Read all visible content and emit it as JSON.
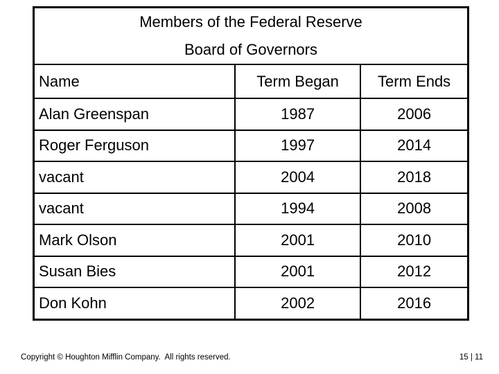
{
  "slide": {
    "table": {
      "title_lines": [
        "Members of the Federal Reserve",
        "Board of Governors"
      ],
      "columns": [
        "Name",
        "Term Began",
        "Term Ends"
      ],
      "rows": [
        {
          "name": "Alan Greenspan",
          "began": "1987",
          "ends": "2006"
        },
        {
          "name": "Roger Ferguson",
          "began": "1997",
          "ends": "2014"
        },
        {
          "name": "vacant",
          "began": "2004",
          "ends": "2018"
        },
        {
          "name": "vacant",
          "began": "1994",
          "ends": "2008"
        },
        {
          "name": "Mark Olson",
          "began": "2001",
          "ends": "2010"
        },
        {
          "name": "Susan Bies",
          "began": "2001",
          "ends": "2012"
        },
        {
          "name": "Don Kohn",
          "began": "2002",
          "ends": "2016"
        }
      ]
    },
    "footer": {
      "copyright": "Copyright © Houghton Mifflin Company.  All rights reserved.",
      "page_number": "15 | 11"
    },
    "colors": {
      "background": "#ffffff",
      "border": "#000000",
      "text": "#000000"
    }
  }
}
